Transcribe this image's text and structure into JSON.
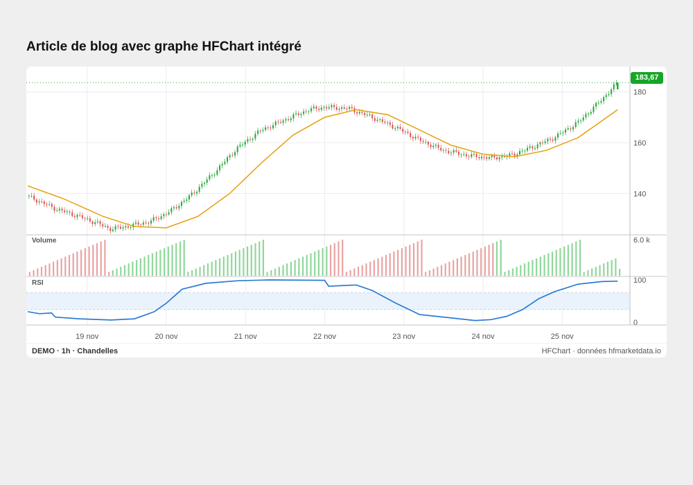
{
  "article": {
    "title": "Article de blog avec graphe HFChart intégré"
  },
  "footer": {
    "left": "DEMO · 1h · Chandelles",
    "right": "HFChart · données hfmarketdata.io"
  },
  "colors": {
    "up": "#22a83a",
    "down": "#d9534f",
    "ma": "#e8a317",
    "rsi": "#2b7bd6",
    "rsi_band": "#eaf2fb",
    "grid": "#ececec",
    "axis_text": "#555555",
    "price_badge": "#16a526"
  },
  "chart_data": [
    {
      "type": "candlestick",
      "pane": "price",
      "last_price_label": "183,67",
      "last_price": 183.67,
      "y_ticks": [
        140,
        160,
        180
      ],
      "y_tick_labels": [
        "140",
        "160",
        "180"
      ],
      "ylim": [
        124,
        190
      ],
      "moving_average": true,
      "x_labels": [
        "19 nov",
        "20 nov",
        "21 nov",
        "22 nov",
        "23 nov",
        "24 nov",
        "25 nov"
      ],
      "x_label_positions_days": [
        1,
        2,
        3,
        4,
        5,
        6,
        7
      ],
      "x_range_days": [
        0.25,
        7.75
      ],
      "closes": [
        {
          "t": 0.25,
          "c": 139
        },
        {
          "t": 0.6,
          "c": 134
        },
        {
          "t": 0.9,
          "c": 131
        },
        {
          "t": 1.15,
          "c": 128
        },
        {
          "t": 1.3,
          "c": 126
        },
        {
          "t": 1.5,
          "c": 127
        },
        {
          "t": 1.8,
          "c": 129
        },
        {
          "t": 2.05,
          "c": 133
        },
        {
          "t": 2.3,
          "c": 139
        },
        {
          "t": 2.6,
          "c": 148
        },
        {
          "t": 2.9,
          "c": 158
        },
        {
          "t": 3.2,
          "c": 165
        },
        {
          "t": 3.5,
          "c": 169
        },
        {
          "t": 3.8,
          "c": 173
        },
        {
          "t": 4.0,
          "c": 174
        },
        {
          "t": 4.3,
          "c": 173.5
        },
        {
          "t": 4.6,
          "c": 170
        },
        {
          "t": 4.9,
          "c": 166
        },
        {
          "t": 5.2,
          "c": 161
        },
        {
          "t": 5.5,
          "c": 157
        },
        {
          "t": 5.8,
          "c": 155
        },
        {
          "t": 6.1,
          "c": 154
        },
        {
          "t": 6.35,
          "c": 155
        },
        {
          "t": 6.6,
          "c": 158
        },
        {
          "t": 6.9,
          "c": 162
        },
        {
          "t": 7.2,
          "c": 168
        },
        {
          "t": 7.5,
          "c": 177
        },
        {
          "t": 7.7,
          "c": 183.67
        }
      ],
      "ma_points": [
        {
          "t": 0.25,
          "v": 143
        },
        {
          "t": 0.7,
          "v": 138
        },
        {
          "t": 1.2,
          "v": 131
        },
        {
          "t": 1.6,
          "v": 127
        },
        {
          "t": 2.0,
          "v": 126.5
        },
        {
          "t": 2.4,
          "v": 131
        },
        {
          "t": 2.8,
          "v": 140
        },
        {
          "t": 3.2,
          "v": 152
        },
        {
          "t": 3.6,
          "v": 163
        },
        {
          "t": 4.0,
          "v": 170
        },
        {
          "t": 4.4,
          "v": 173
        },
        {
          "t": 4.8,
          "v": 171
        },
        {
          "t": 5.2,
          "v": 165
        },
        {
          "t": 5.6,
          "v": 159
        },
        {
          "t": 6.0,
          "v": 155.5
        },
        {
          "t": 6.4,
          "v": 154.5
        },
        {
          "t": 6.8,
          "v": 157
        },
        {
          "t": 7.2,
          "v": 162
        },
        {
          "t": 7.7,
          "v": 173
        }
      ]
    },
    {
      "type": "bar",
      "pane": "volume",
      "title": "Volume",
      "y_tick_label": "6.0 k",
      "ylim": [
        0,
        6000
      ],
      "cycle_min": 600,
      "cycle_max": 6000
    },
    {
      "type": "line",
      "pane": "rsi",
      "title": "RSI",
      "y_tick_labels": [
        "100",
        "0"
      ],
      "ylim": [
        0,
        100
      ],
      "band": [
        30,
        70
      ],
      "values": [
        {
          "t": 0.25,
          "v": 25
        },
        {
          "t": 0.4,
          "v": 20
        },
        {
          "t": 0.55,
          "v": 22
        },
        {
          "t": 0.6,
          "v": 12
        },
        {
          "t": 0.9,
          "v": 8
        },
        {
          "t": 1.3,
          "v": 5
        },
        {
          "t": 1.6,
          "v": 8
        },
        {
          "t": 1.85,
          "v": 25
        },
        {
          "t": 2.0,
          "v": 45
        },
        {
          "t": 2.2,
          "v": 78
        },
        {
          "t": 2.5,
          "v": 92
        },
        {
          "t": 2.9,
          "v": 98
        },
        {
          "t": 3.3,
          "v": 100
        },
        {
          "t": 4.0,
          "v": 99
        },
        {
          "t": 4.05,
          "v": 85
        },
        {
          "t": 4.4,
          "v": 88
        },
        {
          "t": 4.6,
          "v": 75
        },
        {
          "t": 4.9,
          "v": 45
        },
        {
          "t": 5.2,
          "v": 18
        },
        {
          "t": 5.6,
          "v": 10
        },
        {
          "t": 5.9,
          "v": 4
        },
        {
          "t": 6.1,
          "v": 6
        },
        {
          "t": 6.3,
          "v": 14
        },
        {
          "t": 6.5,
          "v": 30
        },
        {
          "t": 6.7,
          "v": 55
        },
        {
          "t": 6.9,
          "v": 72
        },
        {
          "t": 7.2,
          "v": 90
        },
        {
          "t": 7.5,
          "v": 96
        },
        {
          "t": 7.7,
          "v": 97
        }
      ]
    }
  ]
}
